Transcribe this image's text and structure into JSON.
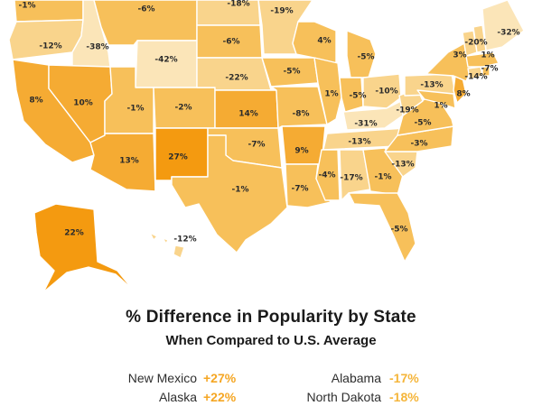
{
  "title": "% Difference in Popularity by State",
  "subtitle": "When Compared to U.S. Average",
  "colors": {
    "v1": "#fbe5b8",
    "v2": "#f9d48c",
    "v3": "#f7c05a",
    "v4": "#f5ab33",
    "v5": "#f49a10",
    "positive": "#f5a623",
    "negative": "#f5b53a",
    "text": "#2e2e2e"
  },
  "legend": {
    "left": [
      {
        "state": "New Mexico",
        "value": "+27%"
      },
      {
        "state": "Alaska",
        "value": "+22%"
      }
    ],
    "right": [
      {
        "state": "Alabama",
        "value": "-17%"
      },
      {
        "state": "North Dakota",
        "value": "-18%"
      }
    ]
  },
  "map": {
    "states": [
      {
        "name": "Washington",
        "value": -1,
        "label": "-1%"
      },
      {
        "name": "Oregon",
        "value": -12,
        "label": "-12%"
      },
      {
        "name": "California",
        "value": 8,
        "label": "8%"
      },
      {
        "name": "Idaho",
        "value": -38,
        "label": "-38%"
      },
      {
        "name": "Nevada",
        "value": 10,
        "label": "10%"
      },
      {
        "name": "Montana",
        "value": -6,
        "label": "-6%"
      },
      {
        "name": "Wyoming",
        "value": -42,
        "label": "-42%"
      },
      {
        "name": "Utah",
        "value": -1,
        "label": "-1%"
      },
      {
        "name": "Arizona",
        "value": 13,
        "label": "13%"
      },
      {
        "name": "Colorado",
        "value": -2,
        "label": "-2%"
      },
      {
        "name": "New Mexico",
        "value": 27,
        "label": "27%"
      },
      {
        "name": "North Dakota",
        "value": -18,
        "label": "-18%"
      },
      {
        "name": "South Dakota",
        "value": -6,
        "label": "-6%"
      },
      {
        "name": "Nebraska",
        "value": -22,
        "label": "-22%"
      },
      {
        "name": "Kansas",
        "value": 14,
        "label": "14%"
      },
      {
        "name": "Oklahoma",
        "value": -7,
        "label": "-7%"
      },
      {
        "name": "Texas",
        "value": -1,
        "label": "-1%"
      },
      {
        "name": "Minnesota",
        "value": -19,
        "label": "-19%"
      },
      {
        "name": "Iowa",
        "value": -5,
        "label": "-5%"
      },
      {
        "name": "Missouri",
        "value": -8,
        "label": "-8%"
      },
      {
        "name": "Arkansas",
        "value": 9,
        "label": "9%"
      },
      {
        "name": "Louisiana",
        "value": -7,
        "label": "-7%"
      },
      {
        "name": "Wisconsin",
        "value": 4,
        "label": "4%"
      },
      {
        "name": "Illinois",
        "value": 1,
        "label": "1%"
      },
      {
        "name": "Michigan",
        "value": -5,
        "label": "-5%"
      },
      {
        "name": "Indiana",
        "value": -5,
        "label": "-5%"
      },
      {
        "name": "Ohio",
        "value": -10,
        "label": "-10%"
      },
      {
        "name": "Kentucky",
        "value": -31,
        "label": "-31%"
      },
      {
        "name": "Tennessee",
        "value": -13,
        "label": "-13%"
      },
      {
        "name": "Mississippi",
        "value": -4,
        "label": "-4%"
      },
      {
        "name": "Alabama",
        "value": -17,
        "label": "-17%"
      },
      {
        "name": "Georgia",
        "value": -1,
        "label": "-1%"
      },
      {
        "name": "Florida",
        "value": -5,
        "label": "-5%"
      },
      {
        "name": "South Carolina",
        "value": -13,
        "label": "-13%"
      },
      {
        "name": "North Carolina",
        "value": -3,
        "label": "-3%"
      },
      {
        "name": "Virginia",
        "value": -5,
        "label": "-5%"
      },
      {
        "name": "West Virginia",
        "value": -19,
        "label": "-19%"
      },
      {
        "name": "Pennsylvania",
        "value": -13,
        "label": "-13%"
      },
      {
        "name": "Maryland",
        "value": 1,
        "label": "1%"
      },
      {
        "name": "New Jersey",
        "value": 8,
        "label": "8%"
      },
      {
        "name": "New York",
        "value": 3,
        "label": "3%"
      },
      {
        "name": "Connecticut",
        "value": -14,
        "label": "-14%"
      },
      {
        "name": "Rhode Island",
        "value": -7,
        "label": "-7%"
      },
      {
        "name": "Massachusetts",
        "value": 1,
        "label": "1%"
      },
      {
        "name": "Vermont",
        "value": -20,
        "label": "-20%"
      },
      {
        "name": "New Hampshire",
        "value": -20,
        "label": ""
      },
      {
        "name": "Maine",
        "value": -32,
        "label": "-32%"
      },
      {
        "name": "Alaska",
        "value": 22,
        "label": "22%"
      },
      {
        "name": "Hawaii",
        "value": -12,
        "label": "-12%"
      }
    ]
  }
}
